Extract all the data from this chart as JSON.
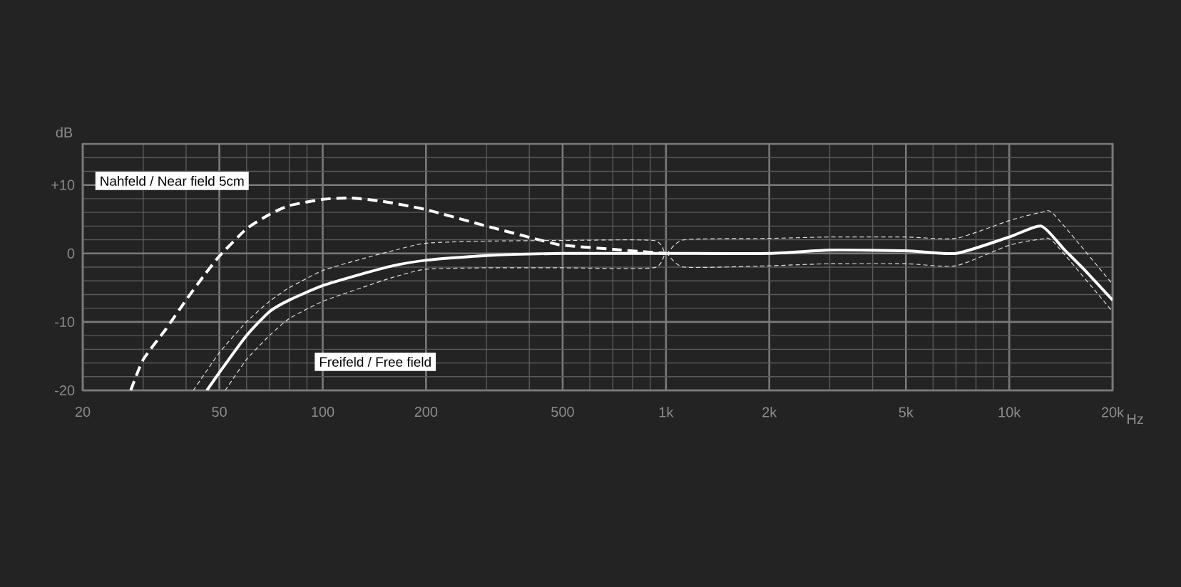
{
  "chart_data": {
    "type": "line",
    "xlabel": "Hz",
    "ylabel": "dB",
    "log": "x",
    "grid": true,
    "marker": "none",
    "xlim": [
      20,
      20000
    ],
    "ylim": [
      -20,
      16
    ],
    "xticks": [
      20,
      50,
      100,
      200,
      500,
      {
        "value": 1000,
        "label": "1k"
      },
      {
        "value": 2000,
        "label": "2k"
      },
      {
        "value": 5000,
        "label": "5k"
      },
      {
        "value": 10000,
        "label": "10k"
      },
      {
        "value": 20000,
        "label": "20k"
      }
    ],
    "yticks": [
      -20,
      -10,
      0,
      {
        "value": 10,
        "label": "+10"
      }
    ],
    "series": [
      {
        "name": "Nahfeld / Near field 5cm",
        "color": "#ffffff",
        "line_style": "dashed",
        "x": [
          27.6,
          30,
          35,
          40,
          45,
          50,
          60,
          70,
          80,
          100,
          120,
          150,
          200,
          300,
          450,
          500,
          700,
          1000
        ],
        "values": [
          -20,
          -15.5,
          -11,
          -6.8,
          -3.3,
          -0.4,
          3.6,
          5.7,
          7,
          7.9,
          8.1,
          7.6,
          6.4,
          4,
          1.7,
          1.2,
          0.6,
          0
        ]
      },
      {
        "name": "Freifeld / Free field",
        "color": "#ffffff",
        "line_style": "solid",
        "x": [
          46,
          50,
          60,
          70,
          80,
          100,
          130,
          160,
          200,
          300,
          500,
          1000,
          2000,
          3000,
          5000,
          7000,
          10000,
          12400,
          14500,
          16500,
          20000
        ],
        "values": [
          -20,
          -17.4,
          -12,
          -8.5,
          -6.8,
          -4.7,
          -3,
          -1.8,
          -1,
          -0.3,
          0,
          0,
          0,
          0.5,
          0.4,
          0,
          2.4,
          4,
          0.5,
          -2.3,
          -6.8
        ]
      },
      {
        "color": "#dddddd",
        "line_style": "dashed",
        "x": [
          42,
          50,
          60,
          70,
          80,
          100,
          130,
          160,
          200,
          300,
          500,
          920,
          1000,
          1130,
          2000,
          3000,
          5000,
          7000,
          10000,
          12400,
          13500,
          20000
        ],
        "values": [
          -20,
          -14.5,
          -10,
          -7,
          -5,
          -2.5,
          -0.8,
          0.4,
          1.5,
          1.8,
          1.9,
          1.9,
          0,
          2,
          2.2,
          2.4,
          2.4,
          2.2,
          4.8,
          6,
          5.7,
          -4.5
        ]
      },
      {
        "color": "#dddddd",
        "line_style": "dashed",
        "x": [
          52,
          60,
          70,
          80,
          100,
          130,
          160,
          200,
          300,
          500,
          920,
          1000,
          1130,
          2000,
          3000,
          5000,
          7000,
          10000,
          12400,
          13500,
          20000
        ],
        "values": [
          -20,
          -15.5,
          -12,
          -9.5,
          -7,
          -5,
          -3.5,
          -2.3,
          -2.1,
          -2.1,
          -2.1,
          0,
          -2,
          -1.8,
          -1.5,
          -1.5,
          -1.8,
          1.2,
          2.1,
          1.6,
          -8.5
        ]
      }
    ]
  }
}
